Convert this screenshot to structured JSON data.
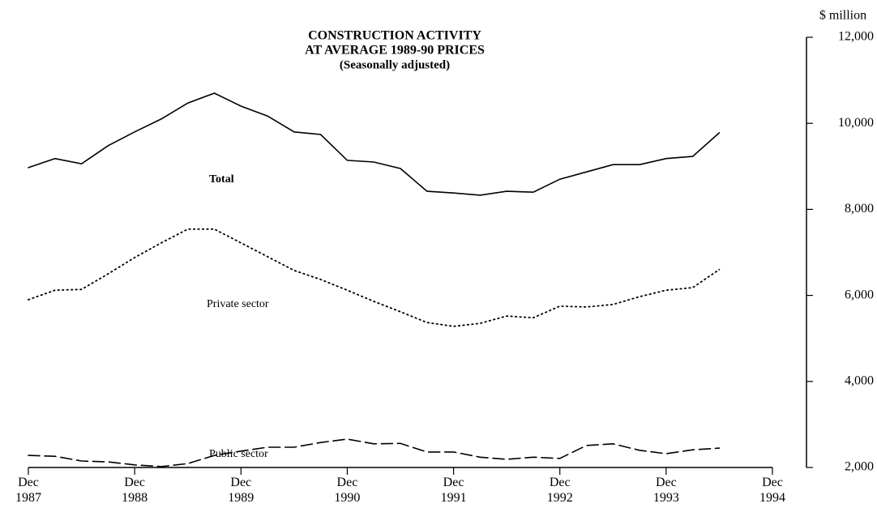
{
  "chart_data": {
    "type": "line",
    "title": [
      "CONSTRUCTION ACTIVITY",
      "AT AVERAGE 1989-90 PRICES"
    ],
    "subtitle": "(Seasonally adjusted)",
    "y_label": "$ million",
    "categories": [
      "Dec 1987",
      null,
      null,
      null,
      "Dec 1988",
      null,
      null,
      null,
      "Dec 1989",
      null,
      null,
      null,
      "Dec 1990",
      null,
      null,
      null,
      "Dec 1991",
      null,
      null,
      null,
      "Dec 1992",
      null,
      null,
      null,
      "Dec 1993",
      null,
      null,
      null,
      "Dec 1994"
    ],
    "series": [
      {
        "name": "Total",
        "color": "#000000",
        "style": "solid",
        "values": [
          8970,
          9180,
          9060,
          9480,
          9800,
          10100,
          10470,
          10700,
          10400,
          10170,
          9800,
          9740,
          9140,
          9100,
          8950,
          8420,
          8380,
          8330,
          8420,
          8400,
          8700,
          8870,
          9040,
          9040,
          9180,
          9230,
          9780,
          null,
          null
        ]
      },
      {
        "name": "Private sector",
        "color": "#000000",
        "style": "dotted",
        "values": [
          5900,
          6120,
          6140,
          6500,
          6880,
          7220,
          7540,
          7540,
          7220,
          6900,
          6580,
          6370,
          6120,
          5860,
          5620,
          5370,
          5280,
          5350,
          5520,
          5480,
          5750,
          5730,
          5790,
          5970,
          6120,
          6180,
          6600,
          null,
          null
        ]
      },
      {
        "name": "Public sector",
        "color": "#000000",
        "style": "dashed",
        "values": [
          2280,
          2260,
          2150,
          2130,
          2060,
          2020,
          2090,
          2280,
          2380,
          2470,
          2470,
          2580,
          2660,
          2550,
          2560,
          2360,
          2360,
          2240,
          2190,
          2240,
          2210,
          2510,
          2550,
          2400,
          2320,
          2410,
          2450,
          null,
          null
        ]
      }
    ],
    "ylim": [
      2000,
      12000
    ],
    "yticks": [
      {
        "value": 2000,
        "label": "2,000"
      },
      {
        "value": 4000,
        "label": "4,000"
      },
      {
        "value": 6000,
        "label": "6,000"
      },
      {
        "value": 8000,
        "label": "8,000"
      },
      {
        "value": 10000,
        "label": "10,000"
      },
      {
        "value": 12000,
        "label": "12,000"
      }
    ],
    "y_axis_side": "right",
    "grid": false
  }
}
